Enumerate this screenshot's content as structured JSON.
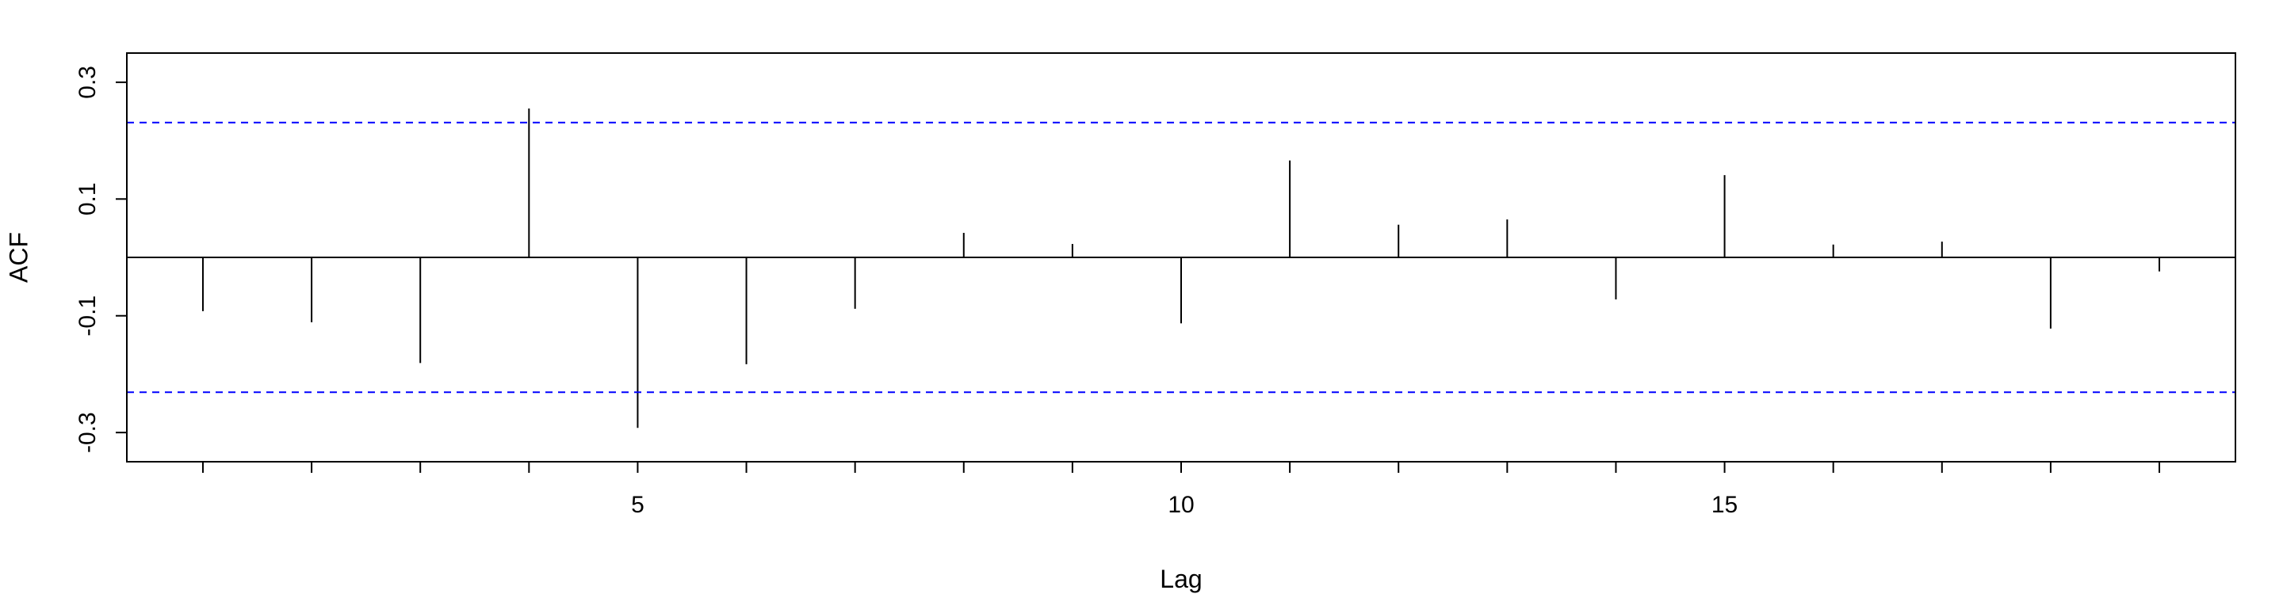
{
  "chart_data": {
    "type": "bar",
    "style": "acf-spikes",
    "title": "",
    "xlabel": "Lag",
    "ylabel": "ACF",
    "xlim": [
      0.3,
      19.7
    ],
    "ylim": [
      -0.35,
      0.35
    ],
    "x_ticks": [
      5,
      10,
      15
    ],
    "y_ticks": [
      -0.3,
      -0.1,
      0.1,
      0.3
    ],
    "y_tick_labels": [
      "-0.3",
      "-0.1",
      "0.1",
      "0.3"
    ],
    "grid": false,
    "legend": "none",
    "confidence_bound": 0.231,
    "colors": {
      "spike": "#000000",
      "bound": "#0000ff",
      "frame": "#000000"
    },
    "lags": [
      1,
      2,
      3,
      4,
      5,
      6,
      7,
      8,
      9,
      10,
      11,
      12,
      13,
      14,
      15,
      16,
      17,
      18,
      19
    ],
    "values": [
      -0.092,
      -0.111,
      -0.181,
      0.255,
      -0.292,
      -0.183,
      -0.088,
      0.042,
      0.023,
      -0.113,
      0.166,
      0.056,
      0.065,
      -0.072,
      0.141,
      0.022,
      0.027,
      -0.122,
      -0.024
    ]
  }
}
